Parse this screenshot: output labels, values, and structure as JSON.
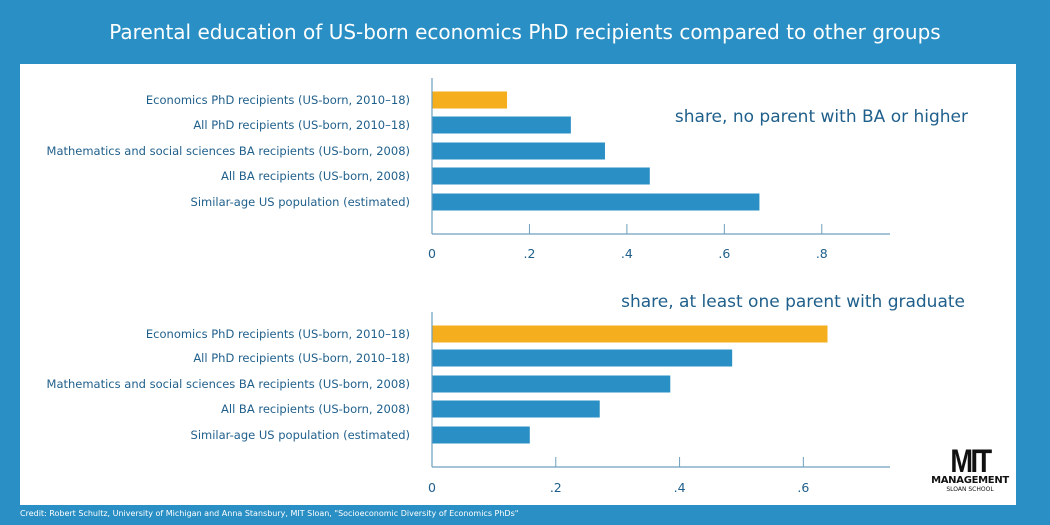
{
  "title": "Parental education of US-born economics PhD recipients compared to other groups",
  "credit": "Credit: Robert Schultz, University of Michigan and Anna Stansbury, MIT Sloan, \"Socioeconomic Diversity of Economics PhDs\"",
  "logo": {
    "line1": "MIT",
    "line2": "MANAGEMENT",
    "line3": "SLOAN SCHOOL"
  },
  "colors": {
    "background": "#2a8fc4",
    "bar": "#2a8fc4",
    "highlight": "#f5ae1e",
    "text": "#1f5f8b"
  },
  "chart_data": [
    {
      "type": "bar",
      "orientation": "horizontal",
      "title": "share, no parent with BA or higher",
      "categories": [
        "Economics PhD recipients (US-born, 2010–18)",
        "All PhD recipients (US-born, 2010–18)",
        "Mathematics and social sciences BA recipients (US-born, 2008)",
        "All BA recipients (US-born, 2008)",
        "Similar-age US population (estimated)"
      ],
      "values": [
        0.154,
        0.285,
        0.355,
        0.447,
        0.672
      ],
      "highlight_index": 0,
      "xlim": [
        0,
        0.94
      ],
      "xticks": [
        0,
        0.2,
        0.4,
        0.6,
        0.8
      ],
      "xtick_labels": [
        "0",
        ".2",
        ".4",
        ".6",
        ".8"
      ],
      "grid": false
    },
    {
      "type": "bar",
      "orientation": "horizontal",
      "title": "share, at least one parent with graduate",
      "categories": [
        "Economics PhD recipients (US-born, 2010–18)",
        "All PhD recipients (US-born, 2010–18)",
        "Mathematics and social sciences BA recipients (US-born, 2008)",
        "All BA recipients (US-born, 2008)",
        "Similar-age US population (estimated)"
      ],
      "values": [
        0.639,
        0.485,
        0.385,
        0.271,
        0.158
      ],
      "highlight_index": 0,
      "xlim": [
        0,
        0.74
      ],
      "xticks": [
        0,
        0.2,
        0.4,
        0.6
      ],
      "xtick_labels": [
        "0",
        ".2",
        ".4",
        ".6"
      ],
      "grid": false
    }
  ]
}
